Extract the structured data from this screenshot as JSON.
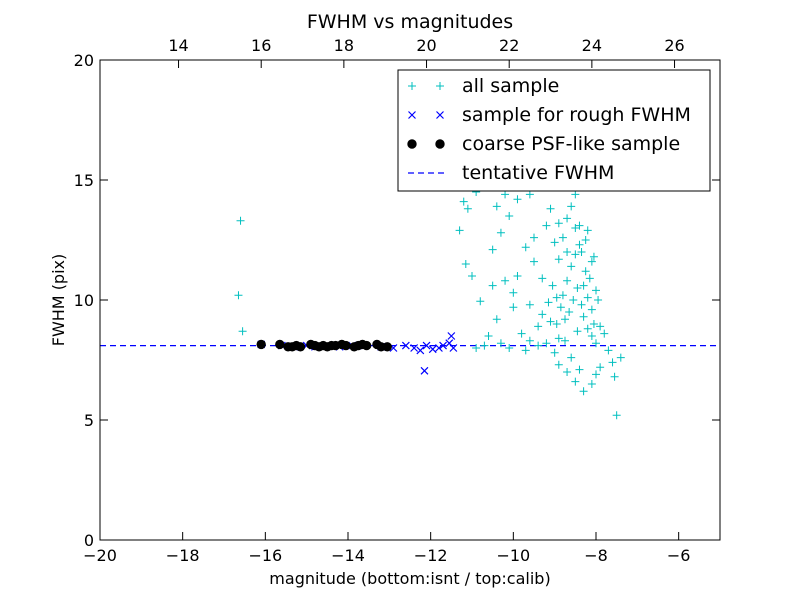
{
  "chart_data": {
    "type": "scatter",
    "title": "FWHM vs magnitudes",
    "xlabel": "magnitude (bottom:isnt / top:calib)",
    "ylabel": "FWHM (pix)",
    "xlim": [
      -20,
      -5
    ],
    "ylim": [
      0,
      20
    ],
    "x_ticks": [
      -20,
      -18,
      -16,
      -14,
      -12,
      -10,
      -8,
      -6
    ],
    "x_tick_labels": [
      "−20",
      "−18",
      "−16",
      "−14",
      "−12",
      "−10",
      "−8",
      "−6"
    ],
    "y_ticks": [
      0,
      5,
      10,
      15,
      20
    ],
    "y_tick_labels": [
      "0",
      "5",
      "10",
      "15",
      "20"
    ],
    "top_axis": {
      "xlim": [
        12.1,
        27.1
      ],
      "ticks": [
        14,
        16,
        18,
        20,
        22,
        24,
        26
      ],
      "tick_labels": [
        "14",
        "16",
        "18",
        "20",
        "22",
        "24",
        "26"
      ]
    },
    "grid": false,
    "legend": {
      "position": "top-right",
      "entries": [
        {
          "label": "all sample",
          "marker": "+",
          "color": "#00bfbf"
        },
        {
          "label": "sample for rough FWHM",
          "marker": "x",
          "color": "#0000ff"
        },
        {
          "label": "coarse PSF-like sample",
          "marker": "o",
          "color": "#000000"
        },
        {
          "label": "tentative FWHM",
          "marker": "dashed-line",
          "color": "#0000ff"
        }
      ]
    },
    "series": [
      {
        "name": "all sample",
        "marker": "+",
        "color": "#00bfbf",
        "points": [
          [
            -16.6,
            13.3
          ],
          [
            -16.65,
            10.2
          ],
          [
            -16.55,
            8.7
          ],
          [
            -11.2,
            14.1
          ],
          [
            -11.1,
            13.8
          ],
          [
            -11.3,
            12.9
          ],
          [
            -11.15,
            11.5
          ],
          [
            -11.0,
            11.0
          ],
          [
            -10.8,
            9.95
          ],
          [
            -10.5,
            10.6
          ],
          [
            -10.2,
            10.8
          ],
          [
            -10.0,
            9.7
          ],
          [
            -10.4,
            9.2
          ],
          [
            -10.6,
            8.5
          ],
          [
            -10.3,
            8.2
          ],
          [
            -10.7,
            8.1
          ],
          [
            -9.8,
            8.6
          ],
          [
            -9.6,
            8.3
          ],
          [
            -10.5,
            12.1
          ],
          [
            -10.3,
            12.8
          ],
          [
            -10.1,
            13.5
          ],
          [
            -9.9,
            14.2
          ],
          [
            -10.4,
            13.9
          ],
          [
            -10.2,
            14.4
          ],
          [
            -9.7,
            12.2
          ],
          [
            -9.5,
            11.6
          ],
          [
            -9.9,
            11.0
          ],
          [
            -10.0,
            10.3
          ],
          [
            -9.3,
            10.9
          ],
          [
            -9.5,
            12.6
          ],
          [
            -9.2,
            13.1
          ],
          [
            -9.1,
            13.8
          ],
          [
            -9.0,
            12.4
          ],
          [
            -9.3,
            9.4
          ],
          [
            -9.6,
            9.8
          ],
          [
            -9.4,
            8.9
          ],
          [
            -9.1,
            9.1
          ],
          [
            -8.9,
            8.4
          ],
          [
            -8.8,
            10.2
          ],
          [
            -8.7,
            10.8
          ],
          [
            -8.6,
            11.4
          ],
          [
            -8.5,
            11.9
          ],
          [
            -8.4,
            12.3
          ],
          [
            -8.3,
            10.6
          ],
          [
            -8.2,
            10.1
          ],
          [
            -8.1,
            9.6
          ],
          [
            -8.05,
            9.0
          ],
          [
            -8.0,
            10.4
          ],
          [
            -8.9,
            11.7
          ],
          [
            -8.8,
            12.6
          ],
          [
            -8.7,
            13.4
          ],
          [
            -8.6,
            13.9
          ],
          [
            -8.5,
            14.4
          ],
          [
            -8.4,
            13.1
          ],
          [
            -8.35,
            12.0
          ],
          [
            -8.25,
            11.2
          ],
          [
            -8.15,
            10.9
          ],
          [
            -8.45,
            10.5
          ],
          [
            -8.55,
            10.0
          ],
          [
            -8.65,
            9.5
          ],
          [
            -8.75,
            9.2
          ],
          [
            -8.85,
            9.7
          ],
          [
            -8.95,
            10.1
          ],
          [
            -9.05,
            10.6
          ],
          [
            -8.3,
            9.3
          ],
          [
            -8.2,
            8.8
          ],
          [
            -8.1,
            8.5
          ],
          [
            -8.0,
            8.2
          ],
          [
            -7.9,
            8.9
          ],
          [
            -7.8,
            8.6
          ],
          [
            -7.7,
            7.9
          ],
          [
            -7.6,
            7.4
          ],
          [
            -7.55,
            6.8
          ],
          [
            -7.9,
            7.2
          ],
          [
            -8.0,
            6.9
          ],
          [
            -8.1,
            6.5
          ],
          [
            -8.3,
            6.2
          ],
          [
            -8.5,
            6.6
          ],
          [
            -8.7,
            7.0
          ],
          [
            -8.9,
            7.3
          ],
          [
            -9.0,
            7.8
          ],
          [
            -8.6,
            7.6
          ],
          [
            -8.4,
            7.1
          ],
          [
            -7.5,
            5.2
          ],
          [
            -7.4,
            7.6
          ],
          [
            -8.2,
            12.9
          ],
          [
            -8.1,
            11.6
          ],
          [
            -7.95,
            10.0
          ],
          [
            -8.8,
            14.9
          ],
          [
            -8.6,
            15.3
          ],
          [
            -8.4,
            14.7
          ],
          [
            -9.2,
            14.9
          ],
          [
            -9.6,
            14.4
          ],
          [
            -10.0,
            15.6
          ],
          [
            -9.8,
            16.2
          ],
          [
            -10.9,
            14.5
          ],
          [
            -10.6,
            14.8
          ],
          [
            -9.7,
            7.9
          ],
          [
            -9.4,
            8.1
          ],
          [
            -10.1,
            8.0
          ],
          [
            -10.9,
            8.0
          ],
          [
            -9.2,
            8.2
          ],
          [
            -8.35,
            9.8
          ],
          [
            -8.45,
            8.7
          ],
          [
            -8.75,
            8.3
          ],
          [
            -8.95,
            9.0
          ],
          [
            -9.15,
            9.9
          ],
          [
            -8.05,
            11.8
          ],
          [
            -8.25,
            12.5
          ],
          [
            -8.5,
            13.0
          ],
          [
            -8.7,
            12.0
          ],
          [
            -8.9,
            13.2
          ]
        ]
      },
      {
        "name": "sample for rough FWHM",
        "marker": "x",
        "color": "#0000ff",
        "points": [
          [
            -16.1,
            8.15
          ],
          [
            -15.6,
            8.1
          ],
          [
            -15.3,
            8.05
          ],
          [
            -15.0,
            8.1
          ],
          [
            -14.8,
            8.05
          ],
          [
            -14.5,
            8.1
          ],
          [
            -14.2,
            8.05
          ],
          [
            -13.9,
            8.1
          ],
          [
            -13.6,
            8.1
          ],
          [
            -13.2,
            8.05
          ],
          [
            -12.9,
            8.0
          ],
          [
            -12.6,
            8.1
          ],
          [
            -12.4,
            8.0
          ],
          [
            -12.25,
            7.9
          ],
          [
            -12.1,
            8.1
          ],
          [
            -12.15,
            7.05
          ],
          [
            -11.95,
            7.95
          ],
          [
            -11.8,
            8.0
          ],
          [
            -11.7,
            8.1
          ],
          [
            -11.55,
            8.2
          ],
          [
            -11.5,
            8.5
          ],
          [
            -11.45,
            8.0
          ]
        ]
      },
      {
        "name": "coarse PSF-like sample",
        "marker": "o",
        "color": "#000000",
        "points": [
          [
            -16.1,
            8.15
          ],
          [
            -15.65,
            8.15
          ],
          [
            -15.45,
            8.05
          ],
          [
            -15.35,
            8.05
          ],
          [
            -15.25,
            8.1
          ],
          [
            -15.15,
            8.05
          ],
          [
            -14.9,
            8.15
          ],
          [
            -14.8,
            8.1
          ],
          [
            -14.7,
            8.05
          ],
          [
            -14.6,
            8.1
          ],
          [
            -14.5,
            8.05
          ],
          [
            -14.4,
            8.1
          ],
          [
            -14.3,
            8.1
          ],
          [
            -14.15,
            8.15
          ],
          [
            -14.05,
            8.1
          ],
          [
            -13.85,
            8.05
          ],
          [
            -13.75,
            8.1
          ],
          [
            -13.65,
            8.15
          ],
          [
            -13.55,
            8.1
          ],
          [
            -13.3,
            8.15
          ],
          [
            -13.2,
            8.05
          ],
          [
            -13.05,
            8.05
          ]
        ]
      }
    ],
    "tentative_fwhm": 8.1
  }
}
